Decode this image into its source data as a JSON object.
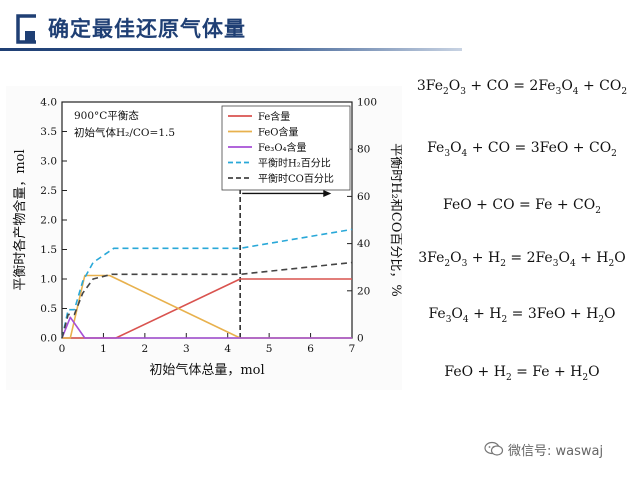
{
  "page": {
    "title": "确定最佳还原气体量",
    "watermark": "微信号: waswaj"
  },
  "equations": [
    {
      "parts": [
        "3Fe",
        "2",
        "O",
        "3",
        " + CO = 2Fe",
        "3",
        "O",
        "4",
        " + CO",
        "2"
      ]
    },
    {
      "parts": [
        "Fe",
        "3",
        "O",
        "4",
        " + CO = 3FeO + CO",
        "2"
      ]
    },
    {
      "parts": [
        "FeO + CO = Fe + CO",
        "2"
      ]
    },
    {
      "parts": [
        "3Fe",
        "2",
        "O",
        "3",
        " + H",
        "2",
        " = 2Fe",
        "3",
        "O",
        "4",
        " + H",
        "2",
        "O"
      ]
    },
    {
      "parts": [
        "Fe",
        "3",
        "O",
        "4",
        " + H",
        "2",
        " = 3FeO + H",
        "2",
        "O"
      ]
    },
    {
      "parts": [
        "FeO + H",
        "2",
        " = Fe + H",
        "2",
        "O"
      ]
    }
  ],
  "chart_data": {
    "type": "line",
    "annotation_1": "900°C平衡态",
    "annotation_2": "初始气体H₂/CO=1.5",
    "xlabel": "初始气体总量，mol",
    "ylabel": "平衡时各产物含量，mol",
    "y2label": "平衡时H₂和CO百分比，%",
    "xlim": [
      0,
      7
    ],
    "ylim": [
      0,
      4.0
    ],
    "y2lim": [
      0,
      100
    ],
    "x_ticks": [
      "0",
      "1",
      "2",
      "3",
      "4",
      "5",
      "6",
      "7"
    ],
    "y_ticks": [
      "0.0",
      "0.5",
      "1.0",
      "1.5",
      "2.0",
      "2.5",
      "3.0",
      "3.5",
      "4.0"
    ],
    "y2_ticks": [
      "0",
      "20",
      "40",
      "60",
      "80",
      "100"
    ],
    "legend_position": "top-right",
    "grid": false,
    "series": [
      {
        "name": "Fe含量",
        "axis": "left",
        "color": "#d9534f",
        "dash": "solid",
        "x": [
          0,
          1.3,
          4.3,
          7
        ],
        "y": [
          0,
          0,
          1.0,
          1.0
        ]
      },
      {
        "name": "FeO含量",
        "axis": "left",
        "color": "#e8b14d",
        "dash": "solid",
        "x": [
          0,
          0.2,
          0.55,
          1.15,
          4.3,
          7
        ],
        "y": [
          0,
          0,
          1.06,
          1.06,
          0,
          0
        ]
      },
      {
        "name": "Fe₃O₄含量",
        "axis": "left",
        "color": "#a64fd6",
        "dash": "solid",
        "x": [
          0,
          0.2,
          0.55,
          7
        ],
        "y": [
          0,
          0.35,
          0,
          0
        ]
      },
      {
        "name": "平衡时H₂百分比",
        "axis": "right",
        "color": "#29a8d8",
        "dash": "dashed",
        "x": [
          0,
          0.15,
          0.3,
          0.5,
          0.75,
          1.25,
          4.3,
          7
        ],
        "y": [
          0,
          12,
          12,
          24,
          32,
          38,
          38,
          46
        ]
      },
      {
        "name": "平衡时CO百分比",
        "axis": "right",
        "color": "#444444",
        "dash": "dashed",
        "x": [
          0,
          0.15,
          0.3,
          0.5,
          0.75,
          1.2,
          4.3,
          7
        ],
        "y": [
          0,
          10,
          10,
          19,
          25,
          27,
          27,
          32
        ]
      }
    ],
    "markers": [
      {
        "type": "vline",
        "x": 4.3,
        "ymin": 0.0,
        "ymax": 2.65,
        "color": "#111111",
        "dash": "dashed"
      },
      {
        "type": "arrow",
        "x_from": 4.35,
        "x_to": 6.5,
        "y": 2.45,
        "color": "#111111"
      }
    ]
  }
}
